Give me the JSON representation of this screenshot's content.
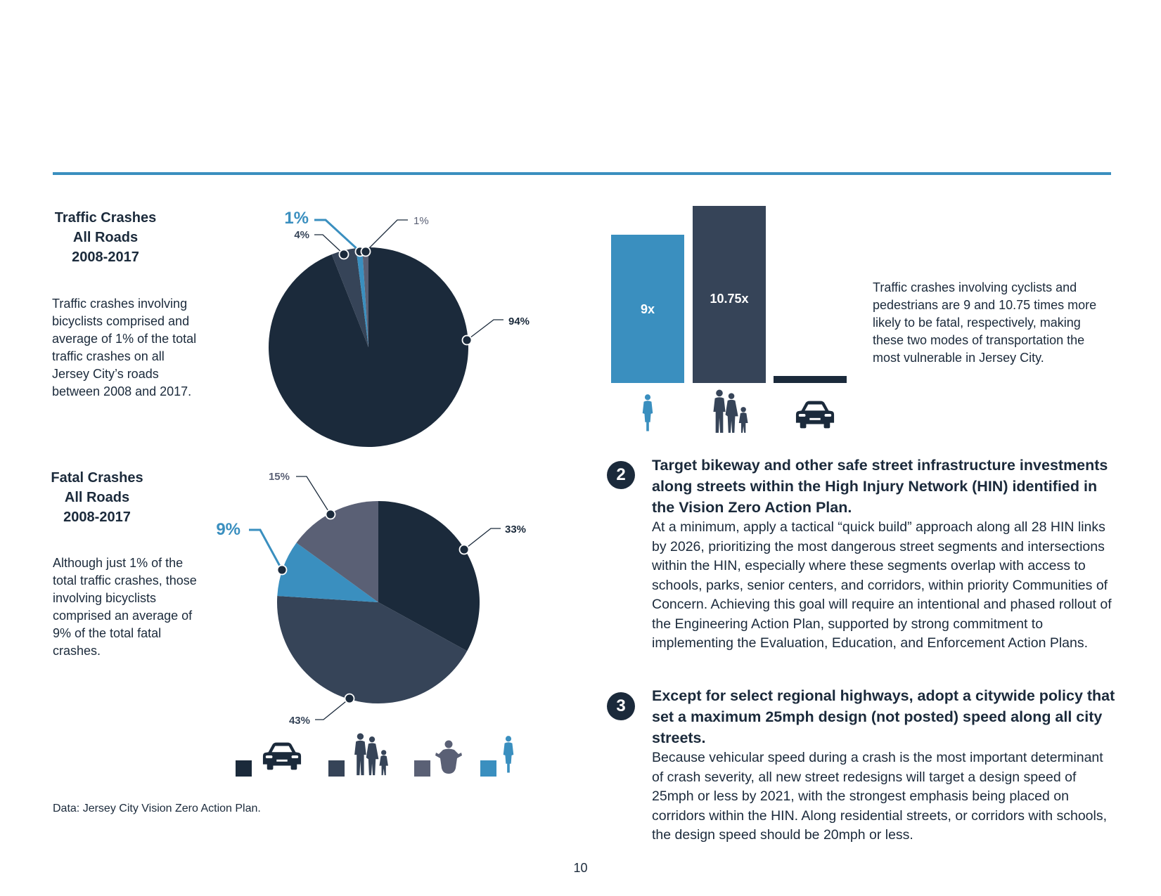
{
  "colors": {
    "navy": "#1b2a3b",
    "slate": "#364458",
    "gray": "#5a6075",
    "blue": "#3a8fbf",
    "rule": "#3a8fbf"
  },
  "left": {
    "chart1": {
      "title_lines": [
        "Traffic Crashes",
        "All Roads",
        "2008-2017"
      ],
      "description": "Traffic crashes involving bicyclists comprised and average of 1% of the total traffic crashes on all Jersey City’s roads between 2008 and 2017."
    },
    "chart2": {
      "title_lines": [
        "Fatal Crashes",
        "All Roads",
        "2008-2017"
      ],
      "description": "Although just 1% of the total traffic crashes, those involving bicyclists comprised an average of 9% of the total fatal crashes."
    },
    "source": "Data: Jersey City Vision Zero Action Plan."
  },
  "chart_data": [
    {
      "type": "pie",
      "title": "Traffic Crashes All Roads 2008-2017",
      "slices": [
        {
          "category": "motor vehicle",
          "value": 94,
          "label": "94%",
          "color": "#1b2a3b"
        },
        {
          "category": "pedestrian",
          "value": 4,
          "label": "4%",
          "color": "#364458"
        },
        {
          "category": "bicyclist",
          "value": 1,
          "label": "1%",
          "color": "#3a8fbf"
        },
        {
          "category": "motorcycle",
          "value": 1,
          "label": "1%",
          "color": "#5a6075"
        }
      ]
    },
    {
      "type": "pie",
      "title": "Fatal Crashes All Roads 2008-2017",
      "slices": [
        {
          "category": "motor vehicle",
          "value": 33,
          "label": "33%",
          "color": "#1b2a3b"
        },
        {
          "category": "pedestrian",
          "value": 43,
          "label": "43%",
          "color": "#364458"
        },
        {
          "category": "bicyclist",
          "value": 9,
          "label": "9%",
          "color": "#3a8fbf"
        },
        {
          "category": "motorcycle",
          "value": 15,
          "label": "15%",
          "color": "#5a6075"
        }
      ],
      "legend": [
        {
          "swatch": "#1b2a3b",
          "icon": "car-icon"
        },
        {
          "swatch": "#364458",
          "icon": "pedestrians-icon"
        },
        {
          "swatch": "#5a6075",
          "icon": "motorcyclist-icon"
        },
        {
          "swatch": "#3a8fbf",
          "icon": "cyclist-icon"
        }
      ]
    },
    {
      "type": "bar",
      "categories": [
        "cyclists",
        "pedestrians",
        "vehicles"
      ],
      "values": [
        9,
        10.75,
        1
      ],
      "data_labels": [
        "9x",
        "10.75x",
        ""
      ],
      "colors": [
        "#3a8fbf",
        "#364458",
        "#1b2a3b"
      ],
      "icons": [
        "cyclist-icon",
        "pedestrians-icon",
        "car-icon"
      ],
      "ylim": [
        0,
        10.75
      ]
    }
  ],
  "bar_note": "Traffic crashes involving cyclists and pedestrians are 9 and 10.75 times more likely to be fatal, respectively, making these two modes of transportation the most vulnerable in Jersey City.",
  "goals": [
    {
      "number": "2",
      "heading": "Target bikeway and other safe street infrastructure investments along streets within the High Injury Network (HIN) identified in the Vision Zero Action Plan.",
      "body": "At a minimum, apply a tactical “quick build” approach along all 28 HIN links by 2026, prioritizing the most dangerous street segments and intersections within the HIN, especially where these segments overlap with access to schools, parks, senior centers, and corridors, within priority Communities of Concern. Achieving this goal will require an intentional and phased rollout of the Engineering Action Plan, supported by strong commitment to implementing the Evaluation, Education, and Enforcement Action Plans."
    },
    {
      "number": "3",
      "heading": "Except for select regional highways, adopt a citywide policy that set a maximum 25mph design (not posted) speed along all city streets.",
      "body": "Because vehicular speed during a crash is the most important determinant of crash severity, all new street redesigns will target a design speed of 25mph or less by 2021, with the strongest emphasis being placed on corridors within the HIN. Along residential streets, or corridors with schools, the design speed should be 20mph or less."
    }
  ],
  "page_number": "10"
}
